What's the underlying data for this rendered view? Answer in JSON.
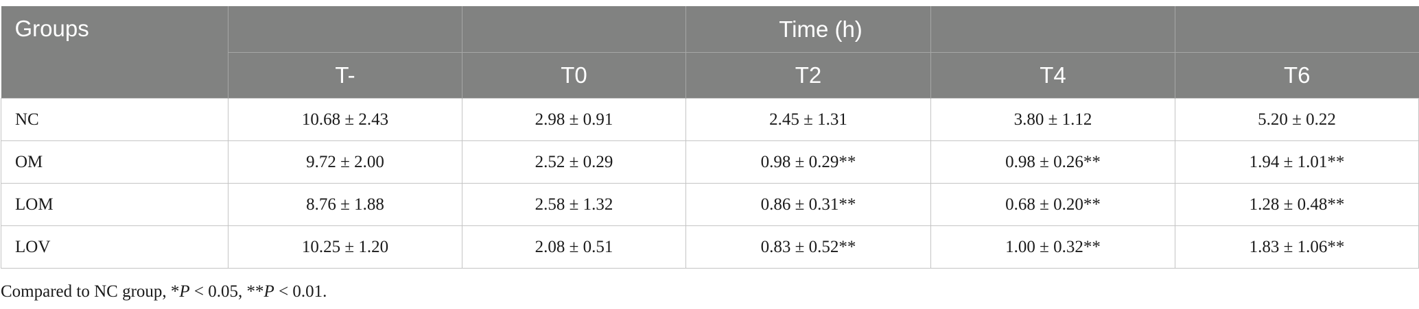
{
  "table": {
    "groups_header": "Groups",
    "time_header": "Time (h)",
    "columns": [
      "T-",
      "T0",
      "T2",
      "T4",
      "T6"
    ],
    "rows": [
      {
        "group": "NC",
        "values": [
          "10.68 ± 2.43",
          "2.98 ± 0.91",
          "2.45 ± 1.31",
          "3.80 ± 1.12",
          "5.20 ± 0.22"
        ]
      },
      {
        "group": "OM",
        "values": [
          "9.72 ± 2.00",
          "2.52 ± 0.29",
          "0.98 ± 0.29**",
          "0.98 ± 0.26**",
          "1.94 ± 1.01**"
        ]
      },
      {
        "group": "LOM",
        "values": [
          "8.76 ± 1.88",
          "2.58 ± 1.32",
          "0.86 ± 0.31**",
          "0.68 ± 0.20**",
          "1.28 ± 0.48**"
        ]
      },
      {
        "group": "LOV",
        "values": [
          "10.25 ± 1.20",
          "2.08 ± 0.51",
          "0.83 ± 0.52**",
          "1.00 ± 0.32**",
          "1.83 ± 1.06**"
        ]
      }
    ]
  },
  "footnote": {
    "prefix": "Compared to NC group, *",
    "p1": "P",
    "mid": " < 0.05, **",
    "p2": "P",
    "suffix": " < 0.01."
  },
  "colors": {
    "header_bg": "#818281",
    "header_text": "#ffffff",
    "grid_line": "#c4c4c4"
  }
}
